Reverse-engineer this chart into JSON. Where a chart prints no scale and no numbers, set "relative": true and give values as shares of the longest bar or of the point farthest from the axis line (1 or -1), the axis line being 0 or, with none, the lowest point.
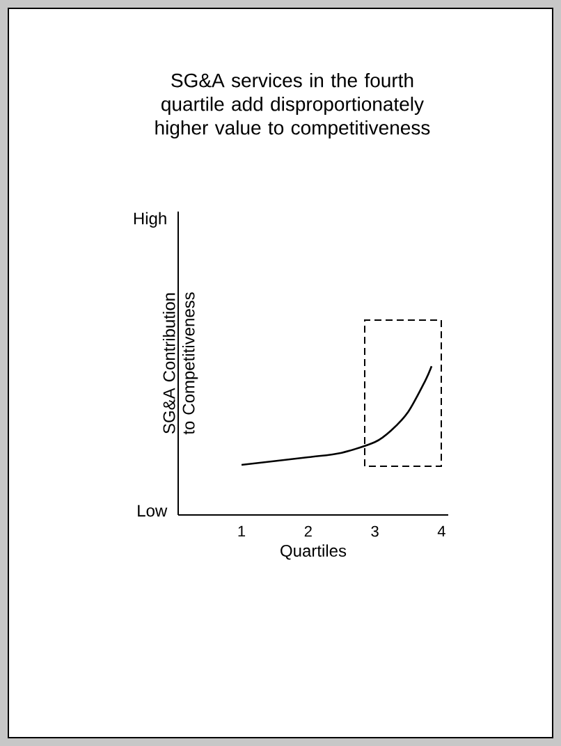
{
  "chart_data": {
    "type": "line",
    "title": "SG&A services in the fourth quartile add disproportionately higher value to competitiveness",
    "xlabel": "Quartiles",
    "ylabel": "SG&A Contribution to Competitiveness",
    "relative": true,
    "annotations": [
      "High",
      "Low"
    ],
    "xlim": [
      0.05,
      4.1
    ],
    "xticks": [
      1,
      2,
      3,
      4
    ],
    "series": [
      {
        "color": "#000000",
        "x": [
          1,
          2,
          2.5,
          3,
          3.25,
          3.5,
          3.75,
          3.85
        ],
        "values": [
          0.337,
          0.388,
          0.418,
          0.49,
          0.571,
          0.694,
          0.898,
          1.0
        ]
      }
    ]
  }
}
